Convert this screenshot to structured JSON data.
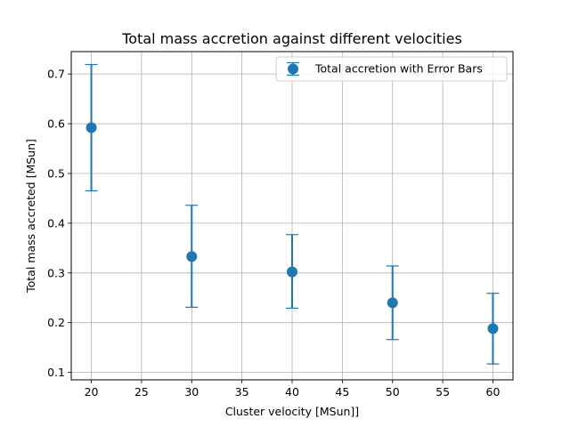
{
  "chart_data": {
    "type": "scatter",
    "title": "Total mass accretion against different velocities",
    "xlabel": "Cluster velocity [MSun]]",
    "ylabel": "Total mass accreted [MSun]",
    "xlim": [
      18,
      62
    ],
    "ylim": [
      0.085,
      0.745
    ],
    "xticks": [
      20,
      25,
      30,
      35,
      40,
      45,
      50,
      55,
      60
    ],
    "yticks": [
      0.1,
      0.2,
      0.3,
      0.4,
      0.5,
      0.6,
      0.7
    ],
    "xtick_labels": [
      "20",
      "25",
      "30",
      "35",
      "40",
      "45",
      "50",
      "55",
      "60"
    ],
    "ytick_labels": [
      "0.1",
      "0.2",
      "0.3",
      "0.4",
      "0.5",
      "0.6",
      "0.7"
    ],
    "grid": true,
    "legend_position": "top-right",
    "series": [
      {
        "name": "Total accretion with Error Bars",
        "color": "#1f77b4",
        "x": [
          20,
          30,
          40,
          50,
          60
        ],
        "y": [
          0.592,
          0.333,
          0.302,
          0.24,
          0.188
        ],
        "err_low": [
          0.465,
          0.231,
          0.229,
          0.166,
          0.117
        ],
        "err_high": [
          0.719,
          0.436,
          0.377,
          0.314,
          0.259
        ]
      }
    ]
  }
}
